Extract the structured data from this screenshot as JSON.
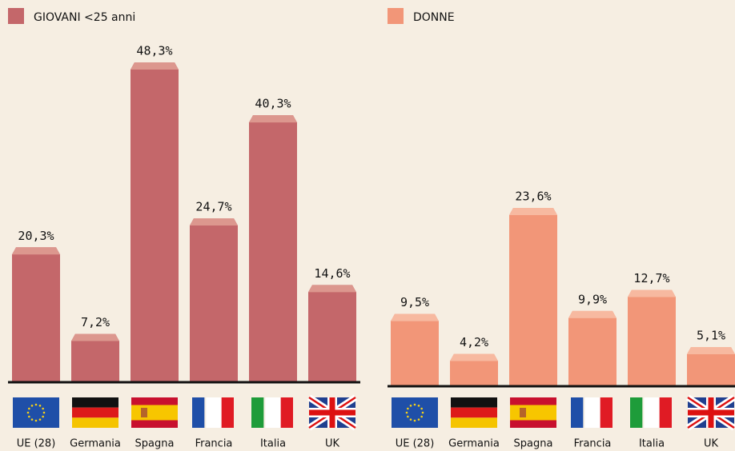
{
  "chart_data": [
    {
      "type": "bar",
      "categories": [
        "UE (28)",
        "Germania",
        "Spagna",
        "Francia",
        "Italia",
        "UK"
      ],
      "series": [
        {
          "name": "GIOVANI <25 anni",
          "color": "#c4676a",
          "cap_color": "#dc978e",
          "values": [
            20.3,
            7.2,
            48.3,
            24.7,
            40.3,
            14.6
          ],
          "value_labels": [
            "20,3%",
            "7,2%",
            "48,3%",
            "24,7%",
            "40,3%",
            "14,6%"
          ]
        }
      ]
    },
    {
      "type": "bar",
      "categories": [
        "UE (28)",
        "Germania",
        "Spagna",
        "Francia",
        "Italia",
        "UK"
      ],
      "series": [
        {
          "name": "DONNE",
          "color": "#f29678",
          "cap_color": "#f7b9a0",
          "values": [
            9.5,
            4.2,
            23.6,
            9.9,
            12.7,
            5.1
          ],
          "value_labels": [
            "9,5%",
            "4,2%",
            "23,6%",
            "9,9%",
            "12,7%",
            "5,1%"
          ]
        }
      ]
    }
  ]
}
